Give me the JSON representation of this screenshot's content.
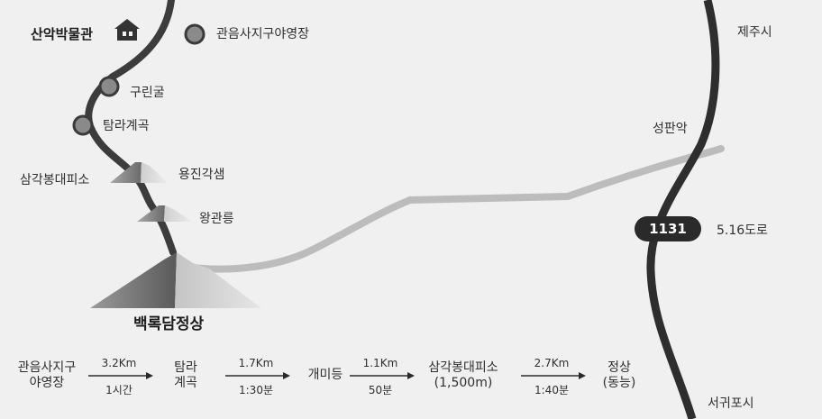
{
  "places": {
    "museum": "산악박물관",
    "campsite": "관음사지구야영장",
    "jeju_city": "제주시",
    "gurin_cave": "구린굴",
    "tamra_valley": "탐라계곡",
    "seongpanak": "성판악",
    "samgak_shelter": "삼각봉대피소",
    "yongjin_cave": "용진각샘",
    "wanggwan": "왕관릉",
    "road_name": "5.16도로",
    "summit": "백록담정상",
    "seogwipo": "서귀포시"
  },
  "route_number": "1131",
  "legend": {
    "stops": [
      {
        "line1": "관음사지구",
        "line2": "야영장"
      },
      {
        "line1": "탐라",
        "line2": "계곡"
      },
      {
        "line1": "개미등",
        "line2": ""
      },
      {
        "line1": "삼각봉대피소",
        "line2": "(1,500m)"
      },
      {
        "line1": "정상",
        "line2": "(동능)"
      }
    ],
    "segments": [
      {
        "distance": "3.2Km",
        "time": "1시간"
      },
      {
        "distance": "1.7Km",
        "time": "1:30분"
      },
      {
        "distance": "1.1Km",
        "time": "50분"
      },
      {
        "distance": "2.7Km",
        "time": "1:40분"
      }
    ]
  },
  "colors": {
    "background": "#f0f0f0",
    "trail": "#3c3c3c",
    "road_gray": "#b8b8b8",
    "highway": "#2e2e2e",
    "badge": "#2a2a2a",
    "marker": "#8a8a8a"
  }
}
